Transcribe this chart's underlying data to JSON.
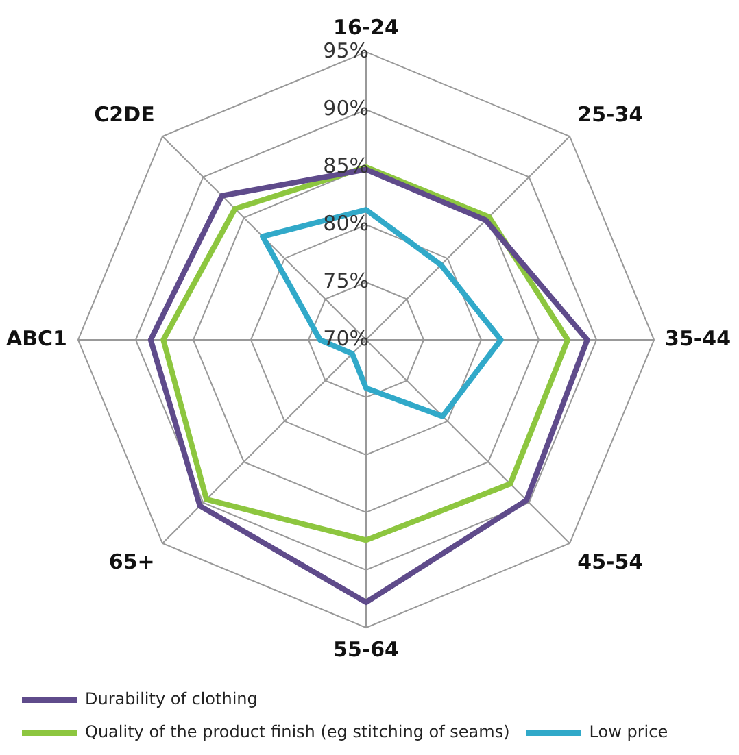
{
  "chart_data": {
    "type": "radar",
    "categories": [
      "16-24",
      "25-34",
      "35-44",
      "45-54",
      "55-64",
      "65+",
      "ABC1",
      "C2DE"
    ],
    "series": [
      {
        "name": "Durability of clothing",
        "color": "#5f4b8b",
        "values": [
          84.8,
          84.7,
          89.2,
          89.7,
          92.8,
          90.4,
          88.7,
          87.7
        ]
      },
      {
        "name": "Quality of the product finish (eg stitching of seams)",
        "color": "#8dc63f",
        "values": [
          85,
          85.1,
          87.5,
          87.7,
          87.4,
          89.6,
          87.6,
          86.1
        ]
      },
      {
        "name": "Low price",
        "color": "#31a9c9",
        "values": [
          81.3,
          79.2,
          81.7,
          79.4,
          74.2,
          71.7,
          74,
          82.7
        ]
      }
    ],
    "ylim": [
      70,
      95
    ],
    "yticks": [
      {
        "value": 70,
        "label": "70%"
      },
      {
        "value": 75,
        "label": "75%"
      },
      {
        "value": 80,
        "label": "80%"
      },
      {
        "value": 85,
        "label": "85%"
      },
      {
        "value": 90,
        "label": "90%"
      },
      {
        "value": 95,
        "label": "95%"
      }
    ],
    "grid": true,
    "legend": "bottom",
    "marker": "none",
    "line_style": "solid"
  }
}
